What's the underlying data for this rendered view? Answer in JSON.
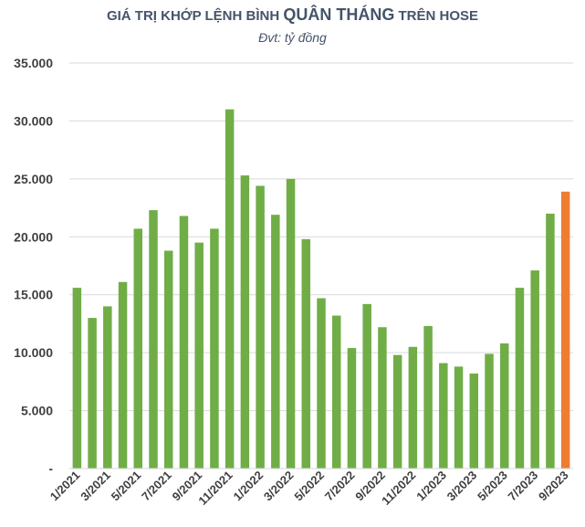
{
  "chart_data": {
    "type": "bar",
    "title_parts": [
      "GIÁ TRỊ KHỚP LỆNH BÌNH ",
      "QUÂN THÁNG",
      " TRÊN HOSE"
    ],
    "subtitle": "Đvt: tỷ đồng",
    "xlabel": "",
    "ylabel": "",
    "ylim": [
      0,
      35000
    ],
    "yticks": [
      0,
      5000,
      10000,
      15000,
      20000,
      25000,
      30000,
      35000
    ],
    "ytick_labels": [
      "-",
      "5.000",
      "10.000",
      "15.000",
      "20.000",
      "25.000",
      "30.000",
      "35.000"
    ],
    "grid": true,
    "legend": "none",
    "categories": [
      "1/2021",
      "2/2021",
      "3/2021",
      "4/2021",
      "5/2021",
      "6/2021",
      "7/2021",
      "8/2021",
      "9/2021",
      "10/2021",
      "11/2021",
      "12/2021",
      "1/2022",
      "2/2022",
      "3/2022",
      "4/2022",
      "5/2022",
      "6/2022",
      "7/2022",
      "8/2022",
      "9/2022",
      "10/2022",
      "11/2022",
      "12/2022",
      "1/2023",
      "2/2023",
      "3/2023",
      "4/2023",
      "5/2023",
      "6/2023",
      "7/2023",
      "8/2023",
      "9/2023"
    ],
    "tick_labels": [
      "1/2021",
      "3/2021",
      "5/2021",
      "7/2021",
      "9/2021",
      "11/2021",
      "1/2022",
      "3/2022",
      "5/2022",
      "7/2022",
      "9/2022",
      "11/2022",
      "1/2023",
      "3/2023",
      "5/2023",
      "7/2023",
      "9/2023"
    ],
    "values": [
      15600,
      13000,
      14000,
      16100,
      20700,
      22300,
      18800,
      21800,
      19500,
      20700,
      31000,
      25300,
      24400,
      21900,
      25000,
      19800,
      14700,
      13200,
      10400,
      14200,
      12200,
      9800,
      10500,
      12300,
      9100,
      8800,
      8200,
      9900,
      10800,
      15600,
      17100,
      22000,
      23900
    ],
    "colors": {
      "bar": "#70ad47",
      "highlight": "#ed7d31",
      "grid": "#d9d9d9",
      "text": "#404040",
      "title": "#44546a"
    },
    "highlight_index": 32
  }
}
